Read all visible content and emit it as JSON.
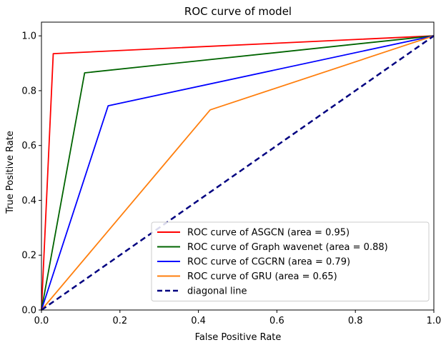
{
  "chart_data": {
    "type": "line",
    "title": "ROC curve of model",
    "xlabel": "False Positive Rate",
    "ylabel": "True Positive Rate",
    "xlim": [
      0.0,
      1.0
    ],
    "ylim": [
      0.0,
      1.05
    ],
    "xticks": [
      0.0,
      0.2,
      0.4,
      0.6,
      0.8,
      1.0
    ],
    "xtick_labels": [
      "0.0",
      "0.2",
      "0.4",
      "0.6",
      "0.8",
      "1.0"
    ],
    "yticks": [
      0.0,
      0.2,
      0.4,
      0.6,
      0.8,
      1.0
    ],
    "ytick_labels": [
      "0.0",
      "0.2",
      "0.4",
      "0.6",
      "0.8",
      "1.0"
    ],
    "grid": false,
    "legend_position": "lower-right",
    "series": [
      {
        "name": "ROC curve of ASGCN (area = 0.95)",
        "color": "#ff0000",
        "dashed": false,
        "x": [
          0.0,
          0.03,
          1.0
        ],
        "y": [
          0.0,
          0.935,
          1.0
        ]
      },
      {
        "name": "ROC curve of Graph wavenet (area = 0.88)",
        "color": "#006400",
        "dashed": false,
        "x": [
          0.0,
          0.11,
          1.0
        ],
        "y": [
          0.0,
          0.865,
          1.0
        ]
      },
      {
        "name": "ROC curve of CGCRN (area = 0.79)",
        "color": "#0000ff",
        "dashed": false,
        "x": [
          0.0,
          0.17,
          1.0
        ],
        "y": [
          0.0,
          0.745,
          1.0
        ]
      },
      {
        "name": "ROC curve of GRU (area = 0.65)",
        "color": "#ff7f0e",
        "dashed": false,
        "x": [
          0.0,
          0.43,
          1.0
        ],
        "y": [
          0.0,
          0.73,
          1.0
        ]
      },
      {
        "name": "diagonal line",
        "color": "#000080",
        "dashed": true,
        "x": [
          0.0,
          1.0
        ],
        "y": [
          0.0,
          1.0
        ]
      }
    ]
  }
}
